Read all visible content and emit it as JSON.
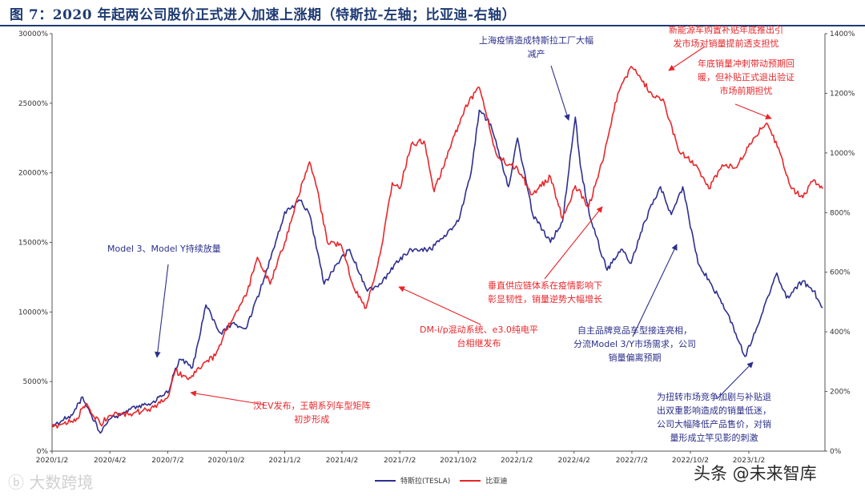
{
  "figure_title": "图 7：2020 年起两公司股价正式进入加速上涨期（特斯拉-左轴；比亚迪-右轴）",
  "chart_data": {
    "type": "line",
    "title": "图 7：2020 年起两公司股价正式进入加速上涨期（特斯拉-左轴；比亚迪-右轴）",
    "x_tick_labels": [
      "2020/1/2",
      "2020/4/2",
      "2020/7/2",
      "2020/10/2",
      "2021/1/2",
      "2021/4/2",
      "2021/7/2",
      "2021/10/2",
      "2022/1/2",
      "2022/4/2",
      "2022/7/2",
      "2022/10/2",
      "2023/1/2"
    ],
    "y_left_ticks": [
      "0%",
      "5000%",
      "10000%",
      "15000%",
      "20000%",
      "25000%",
      "30000%"
    ],
    "y_left_range": [
      0,
      30000
    ],
    "y_right_ticks": [
      "0%",
      "200%",
      "400%",
      "600%",
      "800%",
      "1000%",
      "1200%",
      "1400%"
    ],
    "y_right_range": [
      0,
      1400
    ],
    "grid": false,
    "legend_position": "bottom-center",
    "series": [
      {
        "name": "特斯拉(TESLA)",
        "axis": "left",
        "color": "#2e2f8f",
        "points": [
          [
            "2020/1/2",
            1800
          ],
          [
            "2020/2/3",
            2600
          ],
          [
            "2020/2/19",
            3900
          ],
          [
            "2020/3/18",
            1300
          ],
          [
            "2020/4/2",
            2300
          ],
          [
            "2020/5/4",
            3000
          ],
          [
            "2020/6/2",
            3400
          ],
          [
            "2020/7/2",
            4200
          ],
          [
            "2020/7/20",
            6600
          ],
          [
            "2020/8/10",
            6000
          ],
          [
            "2020/8/31",
            10500
          ],
          [
            "2020/9/23",
            8500
          ],
          [
            "2020/10/12",
            9200
          ],
          [
            "2020/11/2",
            8800
          ],
          [
            "2020/11/24",
            11500
          ],
          [
            "2020/12/15",
            14500
          ],
          [
            "2021/1/2",
            17200
          ],
          [
            "2021/1/26",
            18000
          ],
          [
            "2021/2/10",
            17000
          ],
          [
            "2021/3/5",
            12000
          ],
          [
            "2021/3/26",
            13500
          ],
          [
            "2021/4/14",
            14500
          ],
          [
            "2021/5/12",
            11500
          ],
          [
            "2021/6/2",
            12000
          ],
          [
            "2021/6/25",
            13500
          ],
          [
            "2021/7/20",
            14500
          ],
          [
            "2021/8/20",
            14500
          ],
          [
            "2021/9/10",
            15500
          ],
          [
            "2021/10/2",
            16500
          ],
          [
            "2021/10/22",
            20000
          ],
          [
            "2021/11/4",
            24500
          ],
          [
            "2021/11/22",
            23500
          ],
          [
            "2021/12/20",
            19000
          ],
          [
            "2022/1/3",
            22500
          ],
          [
            "2022/1/27",
            17000
          ],
          [
            "2022/2/24",
            15000
          ],
          [
            "2022/3/15",
            16500
          ],
          [
            "2022/4/4",
            24000
          ],
          [
            "2022/4/12",
            20500
          ],
          [
            "2022/4/26",
            17000
          ],
          [
            "2022/5/24",
            13000
          ],
          [
            "2022/6/15",
            14500
          ],
          [
            "2022/7/1",
            13500
          ],
          [
            "2022/7/22",
            16500
          ],
          [
            "2022/8/16",
            19000
          ],
          [
            "2022/9/2",
            17000
          ],
          [
            "2022/9/20",
            19000
          ],
          [
            "2022/10/14",
            13500
          ],
          [
            "2022/11/4",
            12000
          ],
          [
            "2022/11/28",
            10000
          ],
          [
            "2022/12/27",
            6800
          ],
          [
            "2023/1/20",
            9500
          ],
          [
            "2023/2/15",
            12800
          ],
          [
            "2023/3/2",
            11000
          ],
          [
            "2023/3/27",
            12200
          ],
          [
            "2023/4/14",
            11500
          ],
          [
            "2023/4/28",
            10300
          ]
        ]
      },
      {
        "name": "比亚迪",
        "axis": "right",
        "color": "#e8262a",
        "points": [
          [
            "2020/1/2",
            80
          ],
          [
            "2020/2/10",
            110
          ],
          [
            "2020/2/24",
            160
          ],
          [
            "2020/3/18",
            90
          ],
          [
            "2020/4/2",
            120
          ],
          [
            "2020/5/4",
            125
          ],
          [
            "2020/6/2",
            140
          ],
          [
            "2020/7/2",
            180
          ],
          [
            "2020/7/14",
            270
          ],
          [
            "2020/8/3",
            240
          ],
          [
            "2020/8/31",
            300
          ],
          [
            "2020/9/15",
            320
          ],
          [
            "2020/10/2",
            410
          ],
          [
            "2020/11/2",
            520
          ],
          [
            "2020/11/20",
            650
          ],
          [
            "2020/12/10",
            560
          ],
          [
            "2021/1/2",
            700
          ],
          [
            "2021/1/22",
            850
          ],
          [
            "2021/2/10",
            970
          ],
          [
            "2021/2/22",
            880
          ],
          [
            "2021/3/10",
            700
          ],
          [
            "2021/4/1",
            690
          ],
          [
            "2021/4/20",
            550
          ],
          [
            "2021/5/10",
            480
          ],
          [
            "2021/6/1",
            660
          ],
          [
            "2021/6/20",
            900
          ],
          [
            "2021/7/2",
            880
          ],
          [
            "2021/7/20",
            1030
          ],
          [
            "2021/8/9",
            1040
          ],
          [
            "2021/8/25",
            870
          ],
          [
            "2021/9/20",
            1020
          ],
          [
            "2021/10/12",
            1150
          ],
          [
            "2021/11/4",
            1220
          ],
          [
            "2021/11/30",
            1000
          ],
          [
            "2021/12/20",
            960
          ],
          [
            "2022/1/3",
            950
          ],
          [
            "2022/1/26",
            860
          ],
          [
            "2022/2/24",
            920
          ],
          [
            "2022/3/15",
            780
          ],
          [
            "2022/4/4",
            890
          ],
          [
            "2022/4/25",
            820
          ],
          [
            "2022/5/20",
            1000
          ],
          [
            "2022/6/10",
            1200
          ],
          [
            "2022/7/1",
            1290
          ],
          [
            "2022/7/12",
            1260
          ],
          [
            "2022/8/2",
            1200
          ],
          [
            "2022/8/22",
            1170
          ],
          [
            "2022/9/13",
            1010
          ],
          [
            "2022/10/11",
            960
          ],
          [
            "2022/10/31",
            880
          ],
          [
            "2022/11/21",
            960
          ],
          [
            "2022/12/12",
            950
          ],
          [
            "2023/1/9",
            1050
          ],
          [
            "2023/1/30",
            1100
          ],
          [
            "2023/2/20",
            1000
          ],
          [
            "2023/3/10",
            880
          ],
          [
            "2023/3/28",
            850
          ],
          [
            "2023/4/14",
            910
          ],
          [
            "2023/4/28",
            880
          ]
        ]
      }
    ],
    "annotations": [
      {
        "id": "model3y",
        "color": "blue",
        "text": [
          "Model 3、Model Y持续放量"
        ]
      },
      {
        "id": "han",
        "color": "red",
        "text": [
          "汉EV发布，王朝系列车型矩阵",
          "初步形成"
        ]
      },
      {
        "id": "dmi",
        "color": "red",
        "text": [
          "DM-i/p混动系统、e3.0纯电平",
          "台相继发布"
        ]
      },
      {
        "id": "shanghai",
        "color": "blue",
        "text": [
          "上海疫情造成特斯拉工厂大幅",
          "减产"
        ]
      },
      {
        "id": "supply",
        "color": "red",
        "text": [
          "垂直供应链体系在疫情影响下",
          "彰显韧性，销量逆势大幅增长"
        ]
      },
      {
        "id": "subsidy",
        "color": "red",
        "text": [
          "新能源车购置补贴年底推出引",
          "发市场对销量提前透支担忧"
        ]
      },
      {
        "id": "yearend",
        "color": "red",
        "text": [
          "年底销量冲刺带动预期回",
          "暖，但补贴正式退出验证",
          "市场前期担忧"
        ]
      },
      {
        "id": "domestic",
        "color": "blue",
        "text": [
          "自主品牌竞品车型接连亮相，",
          "分流Model 3/Y市场需求，公司",
          "销量偏离预期"
        ]
      },
      {
        "id": "pricecut",
        "color": "blue",
        "text": [
          "为扭转市场竞争加剧与补贴退",
          "出双重影响造成的销量低迷，",
          "公司大幅降低产品售价，对销",
          "量形成立竿见影的刺激"
        ]
      }
    ]
  },
  "watermarks": {
    "left": "大数跨境",
    "right": "头条 @未来智库"
  }
}
